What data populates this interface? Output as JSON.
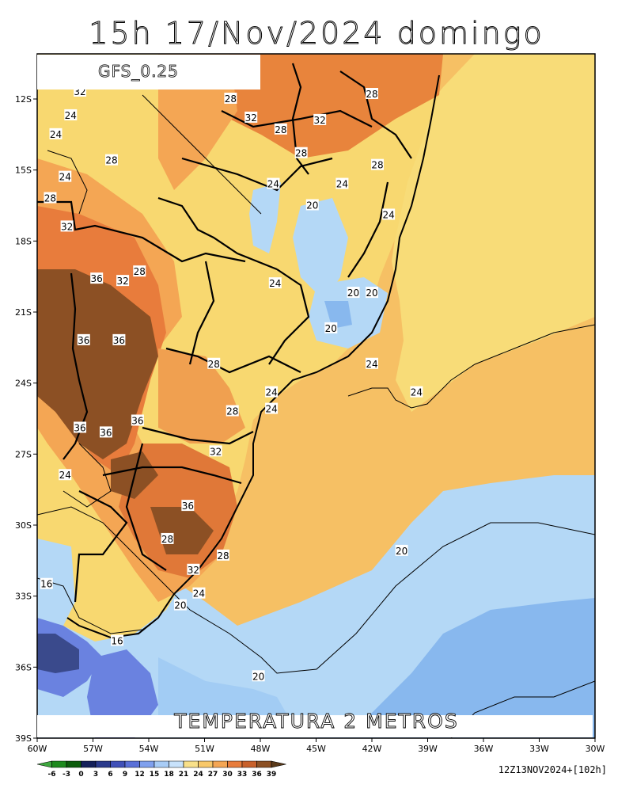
{
  "header": {
    "title": "15h 17/Nov/2024 domingo"
  },
  "model": {
    "label": "GFS_0.25"
  },
  "variable": {
    "label": "TEMPERATURA 2 METROS"
  },
  "run_info": "12Z13NOV2024+[102h]",
  "axes": {
    "lat_ticks": [
      "12S",
      "15S",
      "18S",
      "21S",
      "24S",
      "27S",
      "30S",
      "33S",
      "36S",
      "39S"
    ],
    "lon_ticks": [
      "60W",
      "57W",
      "54W",
      "51W",
      "48W",
      "45W",
      "42W",
      "39W",
      "36W",
      "33W",
      "30W"
    ]
  },
  "colorbar": {
    "labels": [
      "-6",
      "-3",
      "0",
      "3",
      "6",
      "9",
      "12",
      "15",
      "18",
      "21",
      "24",
      "27",
      "30",
      "33",
      "36",
      "39"
    ],
    "colors": [
      "#3fa83f",
      "#1e8a1e",
      "#0c5c0c",
      "#14205a",
      "#2a3a8c",
      "#4050b8",
      "#5a70d8",
      "#7fa0ee",
      "#a8ccf6",
      "#c8e2fb",
      "#f8e08a",
      "#f8c86a",
      "#f4a654",
      "#e87c3c",
      "#c8602a",
      "#8c5024",
      "#5a3a1a"
    ]
  },
  "contour_labels": [
    {
      "text": "32",
      "lon": -57.7,
      "lat": -11.7
    },
    {
      "text": "24",
      "lon": -58.2,
      "lat": -12.7
    },
    {
      "text": "24",
      "lon": -59.0,
      "lat": -13.5
    },
    {
      "text": "28",
      "lon": -46.9,
      "lat": -13.3
    },
    {
      "text": "32",
      "lon": -48.5,
      "lat": -12.8
    },
    {
      "text": "28",
      "lon": -49.6,
      "lat": -12.0
    },
    {
      "text": "32",
      "lon": -44.8,
      "lat": -12.9
    },
    {
      "text": "28",
      "lon": -45.8,
      "lat": -14.3
    },
    {
      "text": "28",
      "lon": -42.0,
      "lat": -11.8
    },
    {
      "text": "28",
      "lon": -41.7,
      "lat": -14.8
    },
    {
      "text": "28",
      "lon": -56.0,
      "lat": -14.6
    },
    {
      "text": "24",
      "lon": -58.5,
      "lat": -15.3
    },
    {
      "text": "24",
      "lon": -47.3,
      "lat": -15.6
    },
    {
      "text": "24",
      "lon": -43.6,
      "lat": -15.6
    },
    {
      "text": "20",
      "lon": -45.2,
      "lat": -16.5
    },
    {
      "text": "28",
      "lon": -59.3,
      "lat": -16.2
    },
    {
      "text": "24",
      "lon": -41.1,
      "lat": -16.9
    },
    {
      "text": "32",
      "lon": -58.4,
      "lat": -17.4
    },
    {
      "text": "36",
      "lon": -56.8,
      "lat": -19.6
    },
    {
      "text": "32",
      "lon": -55.4,
      "lat": -19.7
    },
    {
      "text": "28",
      "lon": -54.5,
      "lat": -19.3
    },
    {
      "text": "24",
      "lon": -47.2,
      "lat": -19.8
    },
    {
      "text": "20",
      "lon": -43.0,
      "lat": -20.2
    },
    {
      "text": "20",
      "lon": -42.0,
      "lat": -20.2
    },
    {
      "text": "20",
      "lon": -44.2,
      "lat": -21.7
    },
    {
      "text": "36",
      "lon": -57.5,
      "lat": -22.2
    },
    {
      "text": "36",
      "lon": -55.6,
      "lat": -22.2
    },
    {
      "text": "28",
      "lon": -50.5,
      "lat": -23.2
    },
    {
      "text": "24",
      "lon": -42.0,
      "lat": -23.2
    },
    {
      "text": "24",
      "lon": -47.4,
      "lat": -24.4
    },
    {
      "text": "24",
      "lon": -39.6,
      "lat": -24.4
    },
    {
      "text": "28",
      "lon": -49.5,
      "lat": -25.2
    },
    {
      "text": "24",
      "lon": -47.4,
      "lat": -25.1
    },
    {
      "text": "36",
      "lon": -54.6,
      "lat": -25.6
    },
    {
      "text": "36",
      "lon": -57.7,
      "lat": -25.9
    },
    {
      "text": "36",
      "lon": -56.3,
      "lat": -26.1
    },
    {
      "text": "32",
      "lon": -50.4,
      "lat": -26.9
    },
    {
      "text": "24",
      "lon": -58.5,
      "lat": -27.9
    },
    {
      "text": "36",
      "lon": -51.9,
      "lat": -29.2
    },
    {
      "text": "28",
      "lon": -53.0,
      "lat": -30.6
    },
    {
      "text": "28",
      "lon": -50.0,
      "lat": -31.3
    },
    {
      "text": "32",
      "lon": -51.6,
      "lat": -31.9
    },
    {
      "text": "20",
      "lon": -40.4,
      "lat": -31.1
    },
    {
      "text": "16",
      "lon": -59.5,
      "lat": -32.5
    },
    {
      "text": "24",
      "lon": -51.3,
      "lat": -32.9
    },
    {
      "text": "20",
      "lon": -52.3,
      "lat": -33.4
    },
    {
      "text": "16",
      "lon": -55.7,
      "lat": -34.9
    },
    {
      "text": "20",
      "lon": -48.1,
      "lat": -36.4
    }
  ]
}
